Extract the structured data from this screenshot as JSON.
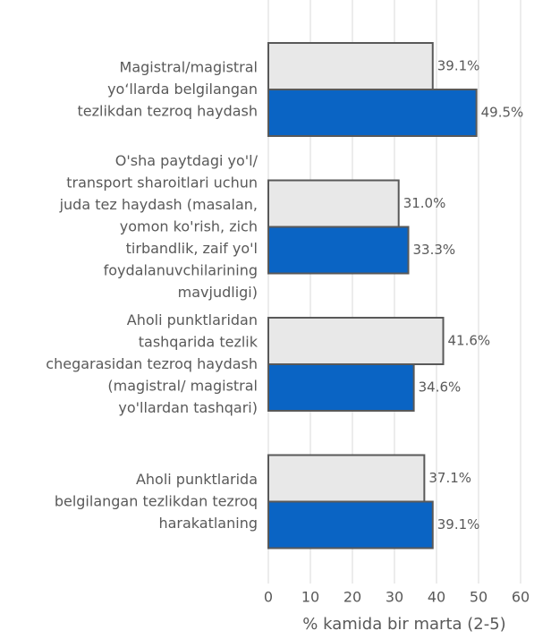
{
  "chart_data": {
    "type": "hbar",
    "categories": [
      "Magistral/magistral\nyo‘llarda belgilangan\ntezlikdan tezroq haydash",
      "O'sha paytdagi yo'l/\ntransport sharoitlari uchun\njuda tez haydash (masalan,\nyomon ko'rish, zich\ntirbandlik, zaif yo'l\nfoydalanuvchilarining\nmavjudligi)",
      "Aholi punktlaridan\ntashqarida tezlik\nchegarasidan tezroq haydash\n(magistral/ magistral\nyo'llardan tashqari)",
      "Aholi punktlarida\nbelgilangan tezlikdan tezroq\nharakatlaning"
    ],
    "series": [
      {
        "color": "#e8e8e8",
        "values": [
          39.1,
          31.0,
          41.6,
          37.1
        ],
        "value_labels": [
          "39.1%",
          "31.0%",
          "41.6%",
          "37.1%"
        ]
      },
      {
        "color": "#0a64c4",
        "values": [
          49.5,
          33.3,
          34.6,
          39.1
        ],
        "value_labels": [
          "49.5%",
          "33.3%",
          "34.6%",
          "39.1%"
        ]
      }
    ],
    "xlim": [
      0,
      60
    ],
    "xticks": [
      0,
      10,
      20,
      30,
      40,
      50,
      60
    ],
    "xlabel": "% kamida bir marta (2-5)",
    "grid": true
  }
}
